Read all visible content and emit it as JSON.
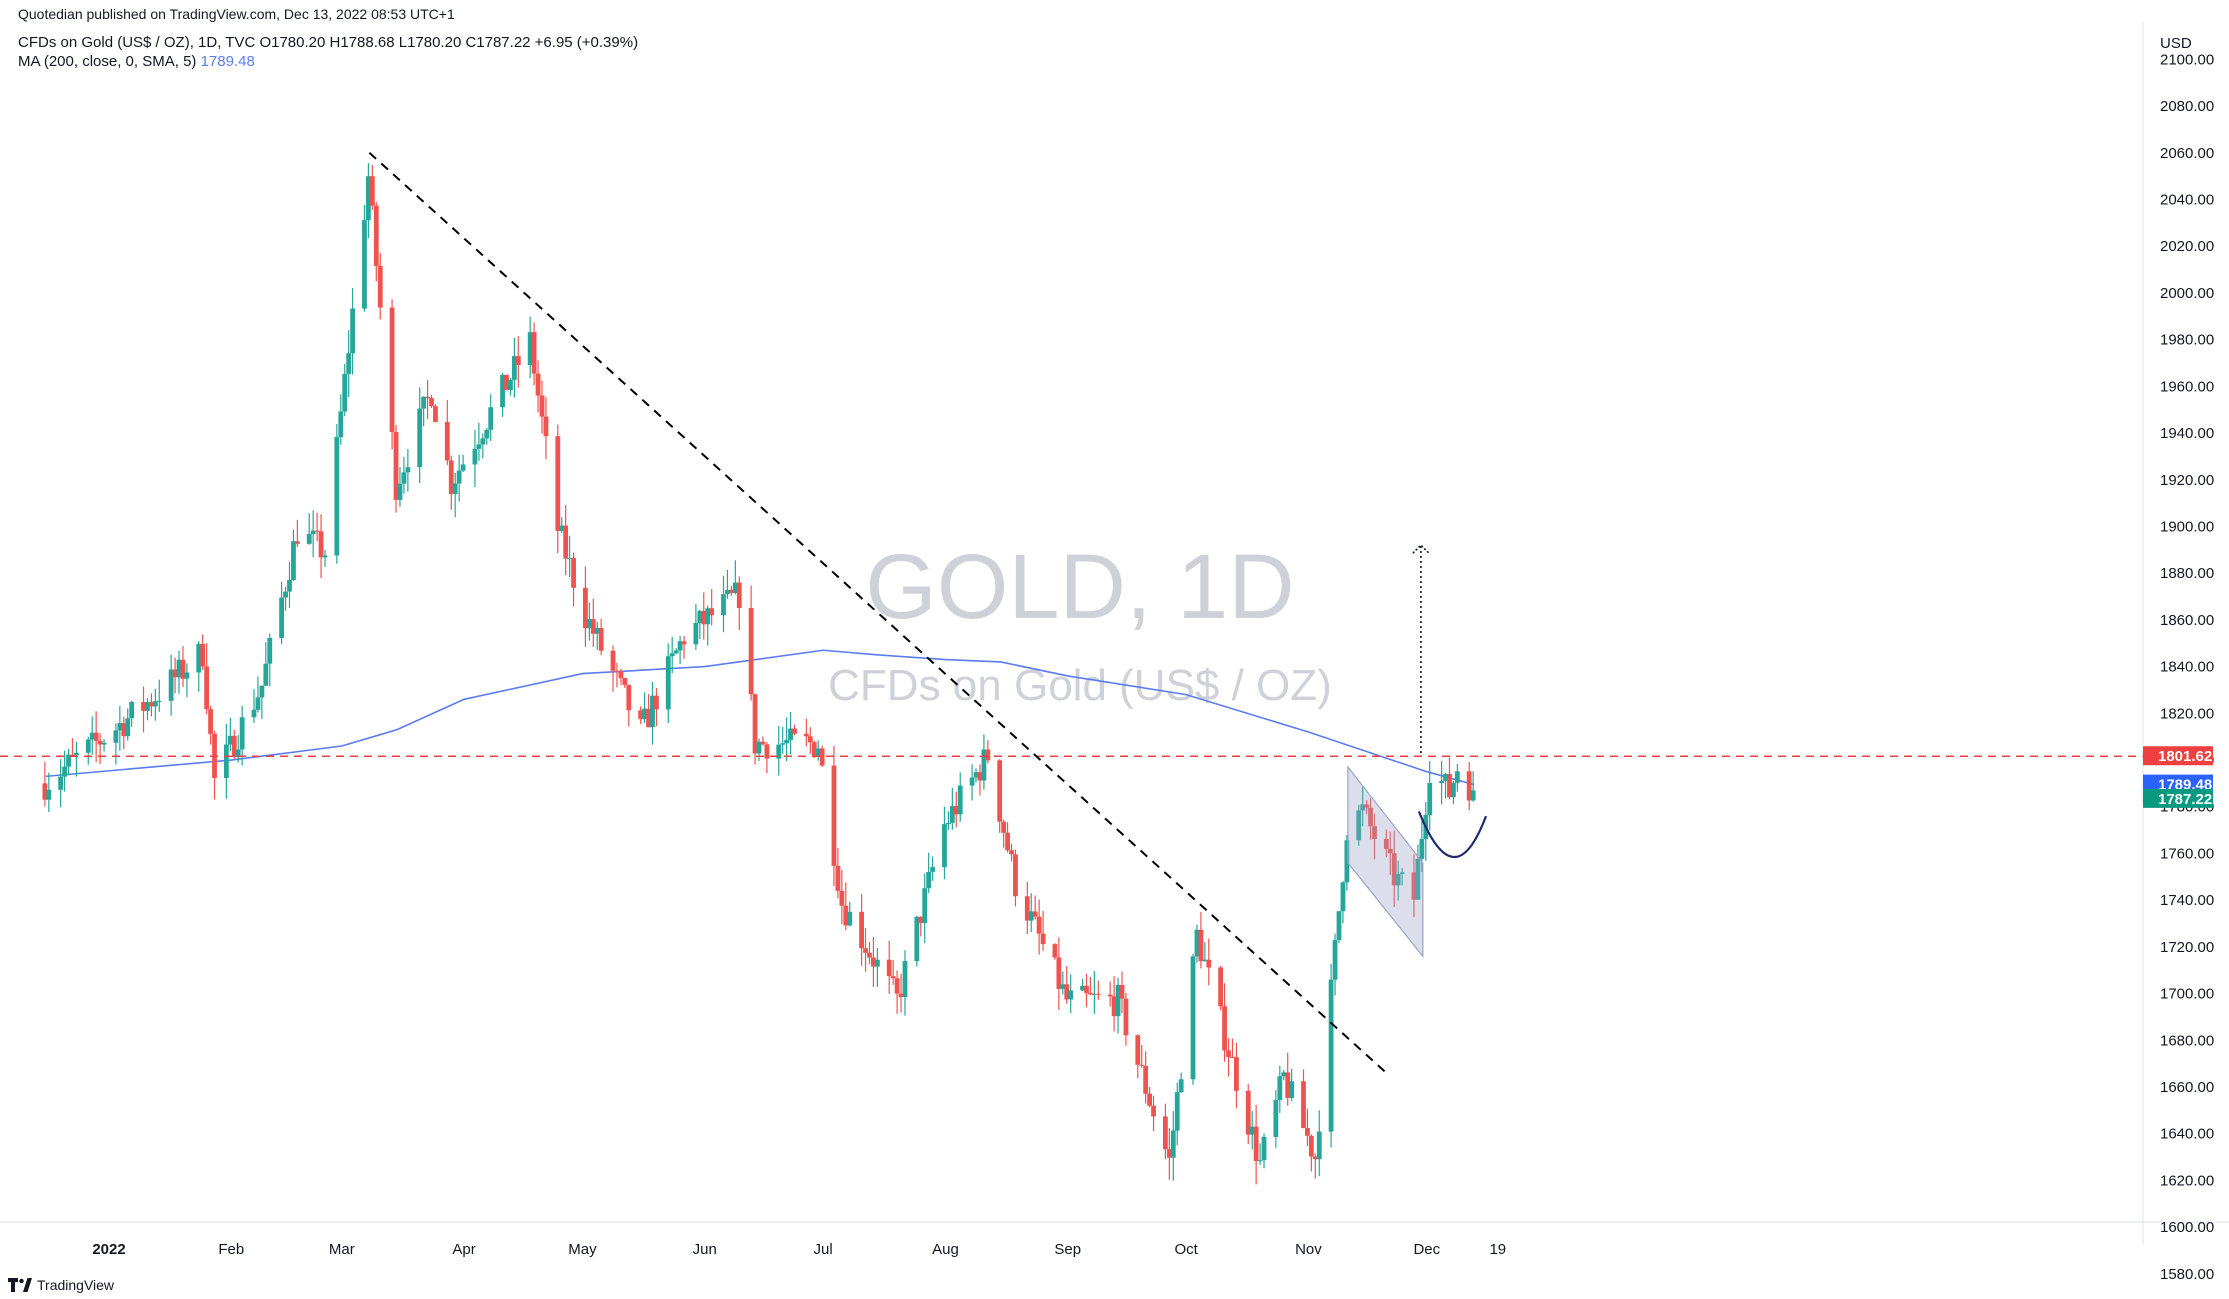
{
  "header": {
    "published": "Quotedian published on TradingView.com, Dec 13, 2022 08:53 UTC+1",
    "ohlc": "CFDs on Gold (US$ / OZ), 1D, TVC O1780.20 H1788.68 L1780.20 C1787.22 +6.95 (+0.39%)",
    "ma_label": "MA (200, close, 0, SMA, 5)",
    "ma_value": "1789.48"
  },
  "watermark": {
    "symbol": "GOLD, 1D",
    "name": "CFDs on Gold (US$ / OZ)"
  },
  "footer": {
    "brand": "TradingView",
    "brand_icon": "tradingview-logo-icon"
  },
  "colors": {
    "up": "#26a69a",
    "down": "#ef5350",
    "ma": "#5b7cf0",
    "resistance": "#ef3f3f",
    "trend": "#000000",
    "channel": "#9aa3c7",
    "arc": "#1f2a6e",
    "ma_tag": "#2962ff",
    "last_tag": "#089981",
    "resistance_tag": "#ef3f3f"
  },
  "chart_data": {
    "type": "candlestick",
    "currency": "USD",
    "ylim": [
      1570,
      2110
    ],
    "yticks": [
      "2100.00",
      "2080.00",
      "2060.00",
      "2040.00",
      "2020.00",
      "2000.00",
      "1980.00",
      "1960.00",
      "1940.00",
      "1920.00",
      "1900.00",
      "1880.00",
      "1860.00",
      "1840.00",
      "1820.00",
      "1800.00",
      "1780.00",
      "1760.00",
      "1740.00",
      "1720.00",
      "1700.00",
      "1680.00",
      "1660.00",
      "1640.00",
      "1620.00",
      "1600.00",
      "1580.00"
    ],
    "xticks": [
      {
        "label": "2022",
        "date": "2022-01-01"
      },
      {
        "label": "Feb",
        "date": "2022-02-01"
      },
      {
        "label": "Mar",
        "date": "2022-03-01"
      },
      {
        "label": "Apr",
        "date": "2022-04-01"
      },
      {
        "label": "May",
        "date": "2022-05-01"
      },
      {
        "label": "Jun",
        "date": "2022-06-01"
      },
      {
        "label": "Jul",
        "date": "2022-07-01"
      },
      {
        "label": "Aug",
        "date": "2022-08-01"
      },
      {
        "label": "Sep",
        "date": "2022-09-01"
      },
      {
        "label": "Oct",
        "date": "2022-10-01"
      },
      {
        "label": "Nov",
        "date": "2022-11-01"
      },
      {
        "label": "Dec",
        "date": "2022-12-01"
      },
      {
        "label": "19",
        "date": "2022-12-19"
      }
    ],
    "candle_start": "2021-12-16",
    "price_path": [
      {
        "date": "2021-12-16",
        "close": 1790
      },
      {
        "date": "2022-01-04",
        "close": 1815
      },
      {
        "date": "2022-01-12",
        "close": 1826
      },
      {
        "date": "2022-01-25",
        "close": 1846
      },
      {
        "date": "2022-01-28",
        "close": 1791
      },
      {
        "date": "2022-02-09",
        "close": 1832
      },
      {
        "date": "2022-02-18",
        "close": 1898
      },
      {
        "date": "2022-02-25",
        "close": 1889
      },
      {
        "date": "2022-03-08",
        "close": 2050
      },
      {
        "date": "2022-03-15",
        "close": 1918
      },
      {
        "date": "2022-03-24",
        "close": 1958
      },
      {
        "date": "2022-03-29",
        "close": 1919
      },
      {
        "date": "2022-04-18",
        "close": 1979
      },
      {
        "date": "2022-04-25",
        "close": 1899
      },
      {
        "date": "2022-05-02",
        "close": 1862
      },
      {
        "date": "2022-05-16",
        "close": 1812
      },
      {
        "date": "2022-05-27",
        "close": 1853
      },
      {
        "date": "2022-06-10",
        "close": 1871
      },
      {
        "date": "2022-06-14",
        "close": 1807
      },
      {
        "date": "2022-06-30",
        "close": 1807
      },
      {
        "date": "2022-07-06",
        "close": 1739
      },
      {
        "date": "2022-07-20",
        "close": 1697
      },
      {
        "date": "2022-08-01",
        "close": 1772
      },
      {
        "date": "2022-08-12",
        "close": 1802
      },
      {
        "date": "2022-08-19",
        "close": 1747
      },
      {
        "date": "2022-09-01",
        "close": 1697
      },
      {
        "date": "2022-09-14",
        "close": 1697
      },
      {
        "date": "2022-09-27",
        "close": 1628
      },
      {
        "date": "2022-10-04",
        "close": 1725
      },
      {
        "date": "2022-10-20",
        "close": 1627
      },
      {
        "date": "2022-10-26",
        "close": 1664
      },
      {
        "date": "2022-11-03",
        "close": 1630
      },
      {
        "date": "2022-11-11",
        "close": 1771
      },
      {
        "date": "2022-11-15",
        "close": 1778
      },
      {
        "date": "2022-11-23",
        "close": 1750
      },
      {
        "date": "2022-11-28",
        "close": 1741
      },
      {
        "date": "2022-12-02",
        "close": 1797
      },
      {
        "date": "2022-12-07",
        "close": 1786
      },
      {
        "date": "2022-12-09",
        "close": 1797
      },
      {
        "date": "2022-12-13",
        "close": 1787
      }
    ],
    "series": [
      {
        "name": "MA (200, close, 0, SMA, 5)",
        "points": [
          {
            "date": "2021-12-16",
            "value": 1793
          },
          {
            "date": "2022-02-01",
            "value": 1800
          },
          {
            "date": "2022-03-01",
            "value": 1806
          },
          {
            "date": "2022-03-15",
            "value": 1813
          },
          {
            "date": "2022-04-01",
            "value": 1826
          },
          {
            "date": "2022-05-01",
            "value": 1837
          },
          {
            "date": "2022-06-01",
            "value": 1840
          },
          {
            "date": "2022-07-01",
            "value": 1847
          },
          {
            "date": "2022-07-15",
            "value": 1845
          },
          {
            "date": "2022-08-01",
            "value": 1843
          },
          {
            "date": "2022-08-15",
            "value": 1842
          },
          {
            "date": "2022-09-01",
            "value": 1836
          },
          {
            "date": "2022-10-01",
            "value": 1828
          },
          {
            "date": "2022-11-01",
            "value": 1812
          },
          {
            "date": "2022-12-01",
            "value": 1795
          },
          {
            "date": "2022-12-13",
            "value": 1789.48
          }
        ]
      }
    ],
    "annotations": {
      "resistance": 1801.62,
      "trendline": [
        {
          "date": "2022-03-08",
          "price": 2060
        },
        {
          "date": "2022-11-11",
          "price": 1671
        }
      ],
      "channel": [
        {
          "date": "2022-11-11",
          "price": 1797
        },
        {
          "date": "2022-11-30",
          "price": 1756
        },
        {
          "date": "2022-11-30",
          "price": 1716
        },
        {
          "date": "2022-11-11",
          "price": 1756
        }
      ],
      "arc": [
        {
          "date": "2022-11-29",
          "price": 1778
        },
        {
          "date": "2022-12-08",
          "price": 1740
        },
        {
          "date": "2022-12-16",
          "price": 1776
        }
      ],
      "target_arrow": [
        {
          "date": "2022-11-29",
          "price": 1803
        },
        {
          "date": "2022-11-29",
          "price": 1892
        }
      ]
    },
    "price_tags": [
      {
        "name": "resistance",
        "value": "1801.62"
      },
      {
        "name": "ma",
        "value": "1789.48"
      },
      {
        "name": "last",
        "value": "1787.22"
      }
    ]
  }
}
